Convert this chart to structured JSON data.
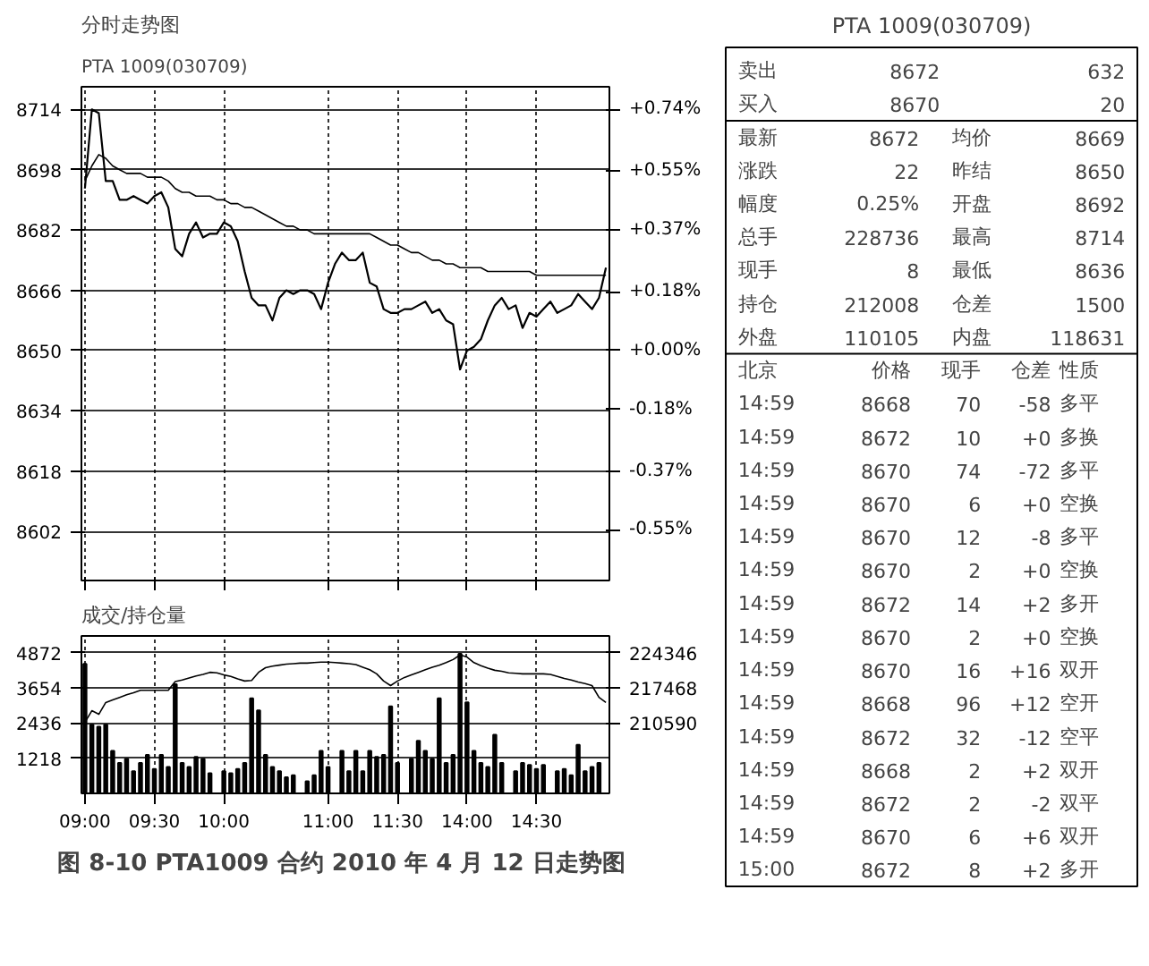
{
  "chart_data": [
    {
      "type": "line",
      "title": "分时走势图",
      "annotations": [
        "PTA 1009(030709)"
      ],
      "categories": [
        null,
        null,
        null,
        null,
        null,
        null,
        null,
        null,
        null,
        null,
        null,
        null,
        null,
        null,
        null,
        null,
        null,
        null,
        null,
        null,
        null,
        null,
        null,
        null,
        null,
        null,
        null,
        null,
        null,
        null,
        null,
        null,
        null,
        null,
        null,
        null,
        null,
        null,
        null,
        null,
        null,
        null,
        null,
        null,
        null,
        null,
        null,
        null,
        null,
        null,
        null,
        null,
        null,
        null,
        null,
        null,
        null,
        null,
        null,
        null,
        null,
        null,
        null,
        null,
        null,
        null,
        null,
        null,
        null,
        null,
        null,
        null,
        null,
        null,
        null,
        null
      ],
      "ylim": [
        8589,
        8720
      ],
      "yticks": [
        8602,
        8618,
        8634,
        8650,
        8666,
        8682,
        8698,
        8714
      ],
      "y2lim": [
        -0.705,
        0.809
      ],
      "y2ticks": [
        {
          "value": -0.55,
          "label": "-0.55%"
        },
        {
          "value": -0.37,
          "label": "-0.37%"
        },
        {
          "value": -0.18,
          "label": "-0.18%"
        },
        {
          "value": 0,
          "label": "+0.00%"
        },
        {
          "value": 0.18,
          "label": "+0.18%"
        },
        {
          "value": 0.37,
          "label": "+0.37%"
        },
        {
          "value": 0.55,
          "label": "+0.55%"
        },
        {
          "value": 0.74,
          "label": "+0.74%"
        }
      ],
      "tick_labels": "y",
      "grid": true,
      "series": [
        {
          "color": "#000000",
          "values": [
            8693,
            8714,
            8713,
            8695,
            8695,
            8690,
            8690,
            8691,
            8690,
            8689,
            8691,
            8692,
            8688,
            8677,
            8675,
            8681,
            8684,
            8680,
            8681,
            8681,
            8684,
            8683,
            8679,
            8671,
            8664,
            8662,
            8662,
            8658,
            8664,
            8666,
            8665,
            8666,
            8666,
            8665,
            8661,
            8668,
            8673,
            8676,
            8674,
            8674,
            8676,
            8668,
            8667,
            8661,
            8660,
            8660,
            8661,
            8661,
            8662,
            8663,
            8660,
            8661,
            8658,
            8657,
            8645,
            8650,
            8651,
            8653,
            8658,
            8662,
            8664,
            8661,
            8662,
            8656,
            8660,
            8659,
            8661,
            8663,
            8660,
            8661,
            8662,
            8665,
            8663,
            8661,
            8664,
            8672
          ]
        },
        {
          "color": "#000000",
          "values": [
            8695,
            8699,
            8702,
            8701,
            8699,
            8698,
            8697,
            8697,
            8697,
            8696,
            8696,
            8696,
            8695,
            8693,
            8692,
            8692,
            8691,
            8691,
            8691,
            8690,
            8690,
            8689,
            8689,
            8688,
            8688,
            8687,
            8686,
            8685,
            8684,
            8683,
            8683,
            8682,
            8682,
            8681,
            8681,
            8681,
            8681,
            8681,
            8681,
            8681,
            8681,
            8681,
            8680,
            8679,
            8678,
            8678,
            8677,
            8676,
            8676,
            8675,
            8674,
            8674,
            8673,
            8673,
            8672,
            8672,
            8672,
            8672,
            8671,
            8671,
            8671,
            8671,
            8671,
            8671,
            8671,
            8670,
            8670,
            8670,
            8670,
            8670,
            8670,
            8670,
            8670,
            8670,
            8670,
            8670
          ]
        }
      ]
    },
    {
      "type": "bar",
      "title": "成交/持仓量",
      "annotations": [
        "图 8-10  PTA1009 合约 2010 年 4 月 12 日走势图"
      ],
      "categories": [
        "09:00",
        null,
        null,
        null,
        null,
        null,
        null,
        null,
        null,
        null,
        "09:30",
        null,
        null,
        null,
        null,
        null,
        null,
        null,
        null,
        null,
        "10:00",
        null,
        null,
        null,
        null,
        null,
        null,
        null,
        null,
        null,
        null,
        null,
        null,
        null,
        null,
        "11:00",
        null,
        null,
        null,
        null,
        null,
        null,
        null,
        null,
        null,
        "11:30",
        null,
        null,
        null,
        null,
        null,
        null,
        null,
        null,
        null,
        "14:00",
        null,
        null,
        null,
        null,
        null,
        null,
        null,
        null,
        null,
        "14:30",
        null,
        null,
        null,
        null,
        null,
        null,
        null,
        null,
        null,
        null
      ],
      "ylim": [
        0,
        5450
      ],
      "yticks": [
        1218,
        2436,
        3654,
        4872
      ],
      "y2lim": [
        196834,
        227610
      ],
      "y2ticks": [
        {
          "value": 210590,
          "label": "210590"
        },
        {
          "value": 217468,
          "label": "217468"
        },
        {
          "value": 224346,
          "label": "224346"
        }
      ],
      "grid": true,
      "series": [
        {
          "type": "bar",
          "color": "#000000",
          "values": [
            4480,
            2380,
            2310,
            2380,
            1470,
            1050,
            1190,
            770,
            1050,
            1330,
            840,
            1330,
            910,
            3780,
            1050,
            910,
            1260,
            1190,
            700,
            null,
            770,
            700,
            840,
            1050,
            3290,
            2870,
            1330,
            910,
            770,
            560,
            630,
            null,
            420,
            630,
            1470,
            910,
            null,
            1470,
            770,
            1470,
            770,
            1470,
            1260,
            1330,
            3010,
            1050,
            null,
            1190,
            1820,
            1470,
            1190,
            3290,
            1050,
            1330,
            4830,
            3150,
            1470,
            1050,
            910,
            2030,
            1050,
            null,
            770,
            1050,
            980,
            840,
            980,
            null,
            770,
            840,
            630,
            1680,
            770,
            910,
            1050,
            null
          ]
        },
        {
          "type": "line",
          "axis": "y2",
          "color": "#000000",
          "values": [
            210700,
            213000,
            212300,
            214600,
            215100,
            215600,
            216100,
            216500,
            217000,
            217000,
            217000,
            217000,
            217000,
            218700,
            219000,
            219400,
            219800,
            220100,
            220500,
            220400,
            220000,
            219700,
            219200,
            218800,
            218900,
            220500,
            221400,
            221700,
            221900,
            222100,
            222200,
            222300,
            222300,
            222400,
            222500,
            222500,
            222400,
            222300,
            222200,
            222000,
            221500,
            221000,
            220200,
            218800,
            217900,
            218800,
            219500,
            220000,
            220500,
            221000,
            221500,
            221900,
            222400,
            223000,
            223900,
            223500,
            222400,
            221800,
            221300,
            220900,
            220700,
            220400,
            220300,
            220200,
            220200,
            220200,
            220200,
            220100,
            219700,
            219300,
            219000,
            218600,
            218300,
            217900,
            215600,
            214600
          ]
        }
      ]
    },
    {
      "type": "other",
      "title": "PTA 1009(030709)",
      "annotations": [
        "卖出",
        "8672",
        "632",
        "买入",
        "8670",
        "20",
        "最新",
        "8672",
        "均价",
        "8669",
        "涨跌",
        "22",
        "昨结",
        "8650",
        "幅度",
        "0.25%",
        "开盘",
        "8692",
        "总手",
        "228736",
        "最高",
        "8714",
        "现手",
        "8",
        "最低",
        "8636",
        "持仓",
        "212008",
        "仓差",
        "1500",
        "外盘",
        "110105",
        "内盘",
        "118631",
        "北京",
        "价格",
        "现手",
        "仓差",
        "性质",
        "14:59",
        "8668",
        "70",
        "-58",
        "多平",
        "14:59",
        "8672",
        "10",
        "+0",
        "多换",
        "14:59",
        "8670",
        "74",
        "-72",
        "多平",
        "14:59",
        "8670",
        "6",
        "+0",
        "空换",
        "14:59",
        "8670",
        "12",
        "-8",
        "多平",
        "14:59",
        "8670",
        "2",
        "+0",
        "空换",
        "14:59",
        "8672",
        "14",
        "+2",
        "多开",
        "14:59",
        "8670",
        "2",
        "+0",
        "空换",
        "14:59",
        "8670",
        "16",
        "+16",
        "双开",
        "14:59",
        "8668",
        "96",
        "+12",
        "空开",
        "14:59",
        "8672",
        "32",
        "-12",
        "空平",
        "14:59",
        "8668",
        "2",
        "+2",
        "双开",
        "14:59",
        "8672",
        "2",
        "-2",
        "双平",
        "14:59",
        "8670",
        "6",
        "+6",
        "双开",
        "15:00",
        "8672",
        "8",
        "+2",
        "多开"
      ]
    }
  ]
}
